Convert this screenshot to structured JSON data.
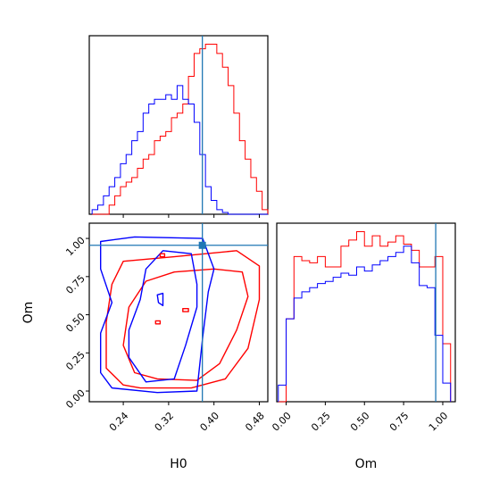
{
  "chart_data": {
    "type": "corner-plot",
    "parameters": [
      "H0",
      "Om"
    ],
    "truths": {
      "H0": 0.3795,
      "Om": 0.955
    },
    "colors": {
      "red": "#ff0000",
      "blue": "#0000ff",
      "truth": "#1f77b4",
      "axis": "#000000"
    },
    "histogram_H0": {
      "xlim": [
        0.18,
        0.495
      ],
      "bin_edges": [
        0.185,
        0.195,
        0.205,
        0.215,
        0.225,
        0.235,
        0.245,
        0.255,
        0.265,
        0.275,
        0.285,
        0.295,
        0.305,
        0.315,
        0.325,
        0.335,
        0.345,
        0.355,
        0.365,
        0.375,
        0.385,
        0.395,
        0.405,
        0.415,
        0.425,
        0.435,
        0.445,
        0.455,
        0.465,
        0.475,
        0.485,
        0.495
      ],
      "series": [
        {
          "color": "red",
          "values": [
            0,
            0,
            0,
            1,
            2,
            3,
            3.5,
            4,
            5,
            6,
            6.5,
            8,
            8.5,
            9,
            10.5,
            11,
            12,
            15,
            17.5,
            18,
            18.5,
            18.5,
            17.5,
            16,
            14,
            11,
            8,
            6,
            4,
            2.5,
            0.5
          ]
        },
        {
          "color": "blue",
          "values": [
            0.5,
            1,
            2,
            3,
            4,
            5.5,
            6.5,
            8,
            9,
            11,
            12,
            12.5,
            12.5,
            13,
            12.5,
            14,
            12.5,
            12,
            10,
            6.5,
            3,
            1.5,
            0.5,
            0.2,
            0,
            0,
            0,
            0,
            0,
            0,
            0
          ]
        }
      ],
      "xticks": [
        0.24,
        0.32,
        0.4,
        0.48
      ]
    },
    "histogram_Om": {
      "xlim": [
        -0.06,
        1.08
      ],
      "bin_edges": [
        -0.05,
        0,
        0.05,
        0.1,
        0.15,
        0.2,
        0.25,
        0.3,
        0.35,
        0.4,
        0.45,
        0.5,
        0.55,
        0.6,
        0.65,
        0.7,
        0.75,
        0.8,
        0.85,
        0.9,
        0.95,
        1.0,
        1.05
      ],
      "series": [
        {
          "color": "red",
          "values": [
            0,
            4,
            7,
            6.8,
            6.7,
            7,
            6.5,
            6.5,
            7.5,
            7.8,
            8.2,
            7.5,
            8,
            7.5,
            7.7,
            8,
            7.6,
            7.3,
            6.5,
            6.5,
            7,
            2.8
          ]
        },
        {
          "color": "blue",
          "values": [
            0.8,
            4,
            5,
            5.3,
            5.5,
            5.7,
            5.8,
            6,
            6.2,
            6.1,
            6.5,
            6.3,
            6.6,
            6.8,
            7,
            7.2,
            7.5,
            6.7,
            5.6,
            5.5,
            3.2,
            0.9
          ]
        }
      ],
      "xticks": [
        0.0,
        0.25,
        0.5,
        0.75,
        1.0
      ],
      "xtick_labels": [
        "0.00",
        "0.25",
        "0.50",
        "0.75",
        "1.00"
      ],
      "xlabel": "Om"
    },
    "scatter_panel": {
      "xlim": [
        0.18,
        0.495
      ],
      "ylim": [
        -0.07,
        1.1
      ],
      "xticks": [
        0.24,
        0.32,
        0.4,
        0.48
      ],
      "xtick_labels": [
        "0.24",
        "0.32",
        "0.40",
        "0.48"
      ],
      "yticks": [
        0.0,
        0.25,
        0.5,
        0.75,
        1.0
      ],
      "ytick_labels": [
        "0.00",
        "0.25",
        "0.50",
        "0.75",
        "1.00"
      ],
      "xlabel": "H0",
      "ylabel": "Om",
      "contours": [
        {
          "color": "red",
          "points": [
            [
              0.27,
              0.02
            ],
            [
              0.36,
              0.02
            ],
            [
              0.42,
              0.08
            ],
            [
              0.46,
              0.28
            ],
            [
              0.48,
              0.6
            ],
            [
              0.48,
              0.82
            ],
            [
              0.44,
              0.92
            ],
            [
              0.33,
              0.88
            ],
            [
              0.24,
              0.85
            ],
            [
              0.22,
              0.7
            ],
            [
              0.21,
              0.45
            ],
            [
              0.21,
              0.15
            ],
            [
              0.24,
              0.04
            ]
          ]
        },
        {
          "color": "red",
          "points": [
            [
              0.3,
              0.08
            ],
            [
              0.37,
              0.07
            ],
            [
              0.41,
              0.18
            ],
            [
              0.44,
              0.4
            ],
            [
              0.46,
              0.62
            ],
            [
              0.45,
              0.78
            ],
            [
              0.4,
              0.8
            ],
            [
              0.33,
              0.78
            ],
            [
              0.28,
              0.72
            ],
            [
              0.25,
              0.55
            ],
            [
              0.24,
              0.3
            ],
            [
              0.26,
              0.12
            ]
          ]
        },
        {
          "color": "blue",
          "points": [
            [
              0.22,
              0.02
            ],
            [
              0.3,
              -0.01
            ],
            [
              0.37,
              0.0
            ],
            [
              0.38,
              0.35
            ],
            [
              0.39,
              0.65
            ],
            [
              0.4,
              0.8
            ],
            [
              0.38,
              1.0
            ],
            [
              0.26,
              1.01
            ],
            [
              0.2,
              0.98
            ],
            [
              0.2,
              0.8
            ],
            [
              0.22,
              0.58
            ],
            [
              0.2,
              0.38
            ],
            [
              0.2,
              0.12
            ]
          ]
        },
        {
          "color": "blue",
          "points": [
            [
              0.28,
              0.06
            ],
            [
              0.33,
              0.08
            ],
            [
              0.35,
              0.3
            ],
            [
              0.37,
              0.55
            ],
            [
              0.37,
              0.7
            ],
            [
              0.36,
              0.9
            ],
            [
              0.31,
              0.92
            ],
            [
              0.28,
              0.8
            ],
            [
              0.27,
              0.6
            ],
            [
              0.25,
              0.4
            ],
            [
              0.25,
              0.22
            ]
          ]
        },
        {
          "color": "blue",
          "points": [
            [
              0.302,
              0.58
            ],
            [
              0.31,
              0.56
            ],
            [
              0.31,
              0.64
            ],
            [
              0.3,
              0.63
            ]
          ]
        },
        {
          "color": "red",
          "points": [
            [
              0.297,
              0.44
            ],
            [
              0.305,
              0.44
            ],
            [
              0.305,
              0.46
            ],
            [
              0.297,
              0.46
            ]
          ]
        },
        {
          "color": "red",
          "points": [
            [
              0.345,
              0.52
            ],
            [
              0.355,
              0.52
            ],
            [
              0.355,
              0.54
            ],
            [
              0.345,
              0.54
            ]
          ]
        },
        {
          "color": "red",
          "points": [
            [
              0.305,
              0.88
            ],
            [
              0.313,
              0.88
            ],
            [
              0.313,
              0.9
            ],
            [
              0.305,
              0.9
            ]
          ]
        }
      ]
    }
  }
}
